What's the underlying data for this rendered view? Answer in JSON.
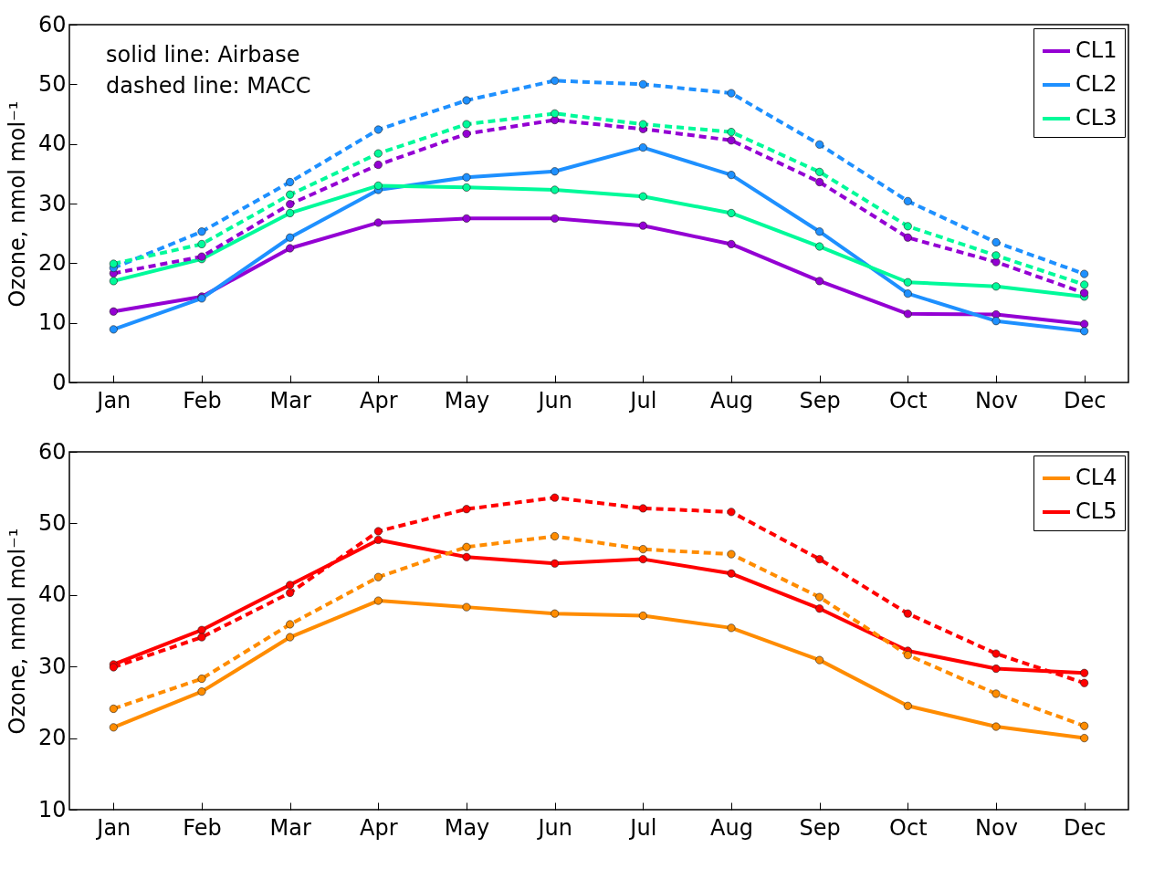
{
  "chart_data": [
    {
      "type": "line",
      "ylabel": "Ozone, nmol mol⁻¹",
      "categories": [
        "Jan",
        "Feb",
        "Mar",
        "Apr",
        "May",
        "Jun",
        "Jul",
        "Aug",
        "Sep",
        "Oct",
        "Nov",
        "Dec"
      ],
      "ylim": [
        0,
        60
      ],
      "yticks": [
        0,
        10,
        20,
        30,
        40,
        50,
        60
      ],
      "legend": "top right",
      "marker": "circle",
      "annotations": [
        "solid line: Airbase",
        "dashed line: MACC"
      ],
      "series": [
        {
          "name": "CL1",
          "color": "#9400d3",
          "line_style": "solid",
          "values": [
            11.9,
            14.4,
            22.5,
            26.8,
            27.5,
            27.5,
            26.3,
            23.2,
            17.0,
            11.5,
            11.4,
            9.8
          ]
        },
        {
          "name": "CL2",
          "color": "#1e90ff",
          "line_style": "solid",
          "values": [
            8.9,
            14.1,
            24.3,
            32.3,
            34.4,
            35.4,
            39.4,
            34.8,
            25.3,
            14.9,
            10.3,
            8.6
          ]
        },
        {
          "name": "CL3",
          "color": "#00fa9a",
          "line_style": "solid",
          "values": [
            17.0,
            20.7,
            28.4,
            33.0,
            32.7,
            32.3,
            31.2,
            28.4,
            22.8,
            16.8,
            16.1,
            14.4
          ]
        },
        {
          "color": "#9400d3",
          "line_style": "dashed",
          "values": [
            18.3,
            21.1,
            29.9,
            36.5,
            41.7,
            44.0,
            42.5,
            40.6,
            33.6,
            24.3,
            20.2,
            15.0
          ]
        },
        {
          "color": "#1e90ff",
          "line_style": "dashed",
          "values": [
            19.2,
            25.3,
            33.6,
            42.4,
            47.3,
            50.6,
            50.0,
            48.5,
            39.9,
            30.4,
            23.5,
            18.2
          ]
        },
        {
          "color": "#00fa9a",
          "line_style": "dashed",
          "values": [
            19.9,
            23.2,
            31.5,
            38.4,
            43.3,
            45.1,
            43.3,
            42.0,
            35.3,
            26.2,
            21.3,
            16.4
          ]
        }
      ]
    },
    {
      "type": "line",
      "ylabel": "Ozone, nmol mol⁻¹",
      "categories": [
        "Jan",
        "Feb",
        "Mar",
        "Apr",
        "May",
        "Jun",
        "Jul",
        "Aug",
        "Sep",
        "Oct",
        "Nov",
        "Dec"
      ],
      "ylim": [
        10,
        60
      ],
      "yticks": [
        10,
        20,
        30,
        40,
        50,
        60
      ],
      "legend": "top right",
      "marker": "circle",
      "series": [
        {
          "name": "CL4",
          "color": "#ff8c00",
          "line_style": "solid",
          "values": [
            21.5,
            26.5,
            34.1,
            39.2,
            38.3,
            37.4,
            37.1,
            35.4,
            30.9,
            24.5,
            21.6,
            20.0
          ]
        },
        {
          "name": "CL5",
          "color": "#ff0000",
          "line_style": "solid",
          "values": [
            30.3,
            35.1,
            41.4,
            47.7,
            45.3,
            44.4,
            45.0,
            43.0,
            38.1,
            32.2,
            29.7,
            29.1
          ]
        },
        {
          "color": "#ff8c00",
          "line_style": "dashed",
          "values": [
            24.1,
            28.3,
            35.9,
            42.5,
            46.7,
            48.2,
            46.4,
            45.7,
            39.7,
            31.6,
            26.2,
            21.7
          ]
        },
        {
          "color": "#ff0000",
          "line_style": "dashed",
          "values": [
            29.9,
            34.1,
            40.3,
            48.9,
            52.0,
            53.6,
            52.1,
            51.6,
            45.0,
            37.4,
            31.8,
            27.7
          ]
        }
      ]
    }
  ]
}
